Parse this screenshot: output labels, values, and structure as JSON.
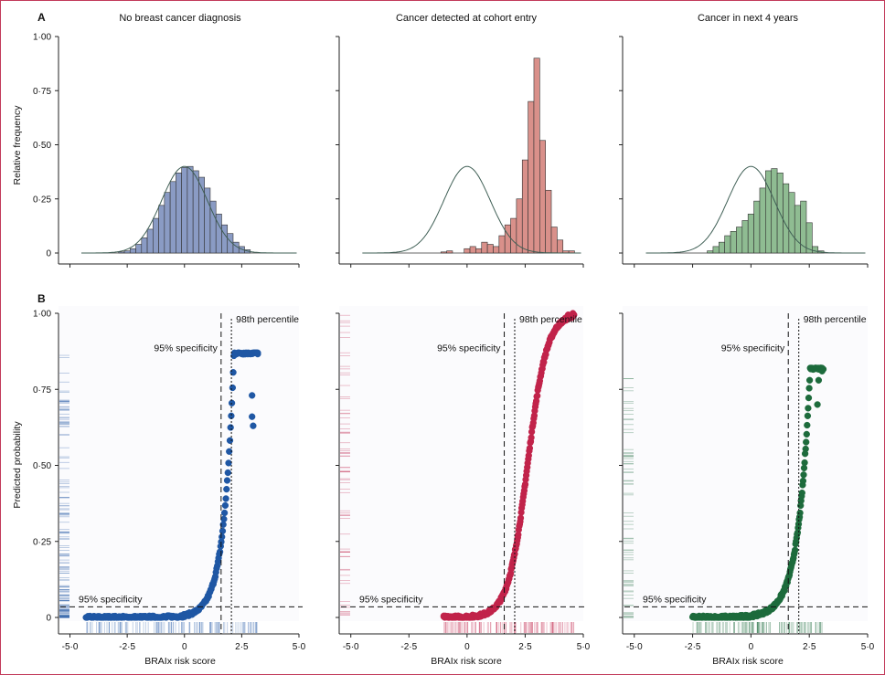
{
  "chart_data": [
    {
      "panel": "A",
      "type": "bar",
      "ylabel": "Relative frequency",
      "ylim": [
        0,
        1.0
      ],
      "yticks": [
        "0",
        "0·25",
        "0·50",
        "0·75",
        "1·00"
      ],
      "x_range": [
        -5.5,
        5.0
      ],
      "subplots": [
        {
          "title": "No breast cancer diagnosis",
          "color": "#8a9bc4",
          "reference_curve": {
            "mean": 0,
            "sd": 1,
            "peak": 0.4
          },
          "bins": [
            -2.75,
            -2.5,
            -2.25,
            -2.0,
            -1.75,
            -1.5,
            -1.25,
            -1.0,
            -0.75,
            -0.5,
            -0.25,
            0,
            0.25,
            0.5,
            0.75,
            1.0,
            1.25,
            1.5,
            1.75,
            2.0,
            2.25,
            2.5,
            2.75
          ],
          "values": [
            0.005,
            0.01,
            0.02,
            0.04,
            0.07,
            0.11,
            0.16,
            0.22,
            0.28,
            0.33,
            0.37,
            0.395,
            0.4,
            0.38,
            0.35,
            0.3,
            0.24,
            0.18,
            0.13,
            0.09,
            0.05,
            0.03,
            0.015
          ]
        },
        {
          "title": "Cancer detected at cohort entry",
          "color": "#d9908a",
          "reference_curve": {
            "mean": 0,
            "sd": 1,
            "peak": 0.4
          },
          "bins": [
            -1.0,
            -0.75,
            0,
            0.25,
            0.5,
            0.75,
            1.0,
            1.25,
            1.5,
            1.75,
            2.0,
            2.25,
            2.5,
            2.75,
            3.0,
            3.25,
            3.5,
            3.75,
            4.0,
            4.25,
            4.5
          ],
          "values": [
            0.005,
            0.01,
            0.02,
            0.03,
            0.02,
            0.05,
            0.04,
            0.03,
            0.08,
            0.13,
            0.16,
            0.25,
            0.43,
            0.7,
            0.9,
            0.52,
            0.29,
            0.12,
            0.06,
            0.01,
            0.01
          ]
        },
        {
          "title": "Cancer in next 4 years",
          "color": "#8fbc92",
          "reference_curve": {
            "mean": 0,
            "sd": 1,
            "peak": 0.4
          },
          "bins": [
            -1.75,
            -1.5,
            -1.25,
            -1.0,
            -0.75,
            -0.5,
            -0.25,
            0,
            0.25,
            0.5,
            0.75,
            1.0,
            1.25,
            1.5,
            1.75,
            2.0,
            2.25,
            2.5,
            2.75,
            3.0
          ],
          "values": [
            0.01,
            0.03,
            0.05,
            0.08,
            0.1,
            0.12,
            0.15,
            0.18,
            0.24,
            0.3,
            0.38,
            0.39,
            0.37,
            0.32,
            0.28,
            0.22,
            0.24,
            0.14,
            0.03,
            0.01
          ]
        }
      ]
    },
    {
      "panel": "B",
      "type": "scatter",
      "xlabel": "BRAIx risk score",
      "ylabel": "Predicted probability",
      "xticks": [
        "-5·0",
        "-2·5",
        "0",
        "2·5",
        "5·0"
      ],
      "yticks": [
        "0",
        "0·25",
        "0·50",
        "0·75",
        "1·00"
      ],
      "xlim": [
        -5.5,
        5.0
      ],
      "ylim": [
        0,
        1.0
      ],
      "vlines": {
        "spec95": 1.6,
        "pct98": 2.05
      },
      "hline": 0.035,
      "annotations": {
        "spec_v": "95% specificity",
        "pct": "98th percentile",
        "spec_h": "95% specificity"
      },
      "subplots": [
        {
          "color": "#1f57a4",
          "rug": "#1f57a4",
          "x_min": -4.3,
          "x_max": 3.2,
          "max_prob": 0.87,
          "outliers": [
            [
              2.95,
              0.73
            ],
            [
              2.95,
              0.66
            ],
            [
              3.0,
              0.63
            ],
            [
              3.2,
              0.87
            ]
          ]
        },
        {
          "color": "#c1234a",
          "rug": "#c1234a",
          "x_min": -1.0,
          "x_max": 4.6,
          "max_prob": 1.0,
          "outliers": [
            [
              -1.0,
              0.005
            ],
            [
              4.35,
              0.995
            ],
            [
              4.55,
              1.0
            ]
          ]
        },
        {
          "color": "#1d6b3c",
          "rug": "#1d6b3c",
          "x_min": -2.5,
          "x_max": 3.1,
          "max_prob": 0.82,
          "outliers": [
            [
              2.9,
              0.78
            ],
            [
              3.05,
              0.81
            ],
            [
              2.85,
              0.7
            ]
          ]
        }
      ]
    }
  ]
}
